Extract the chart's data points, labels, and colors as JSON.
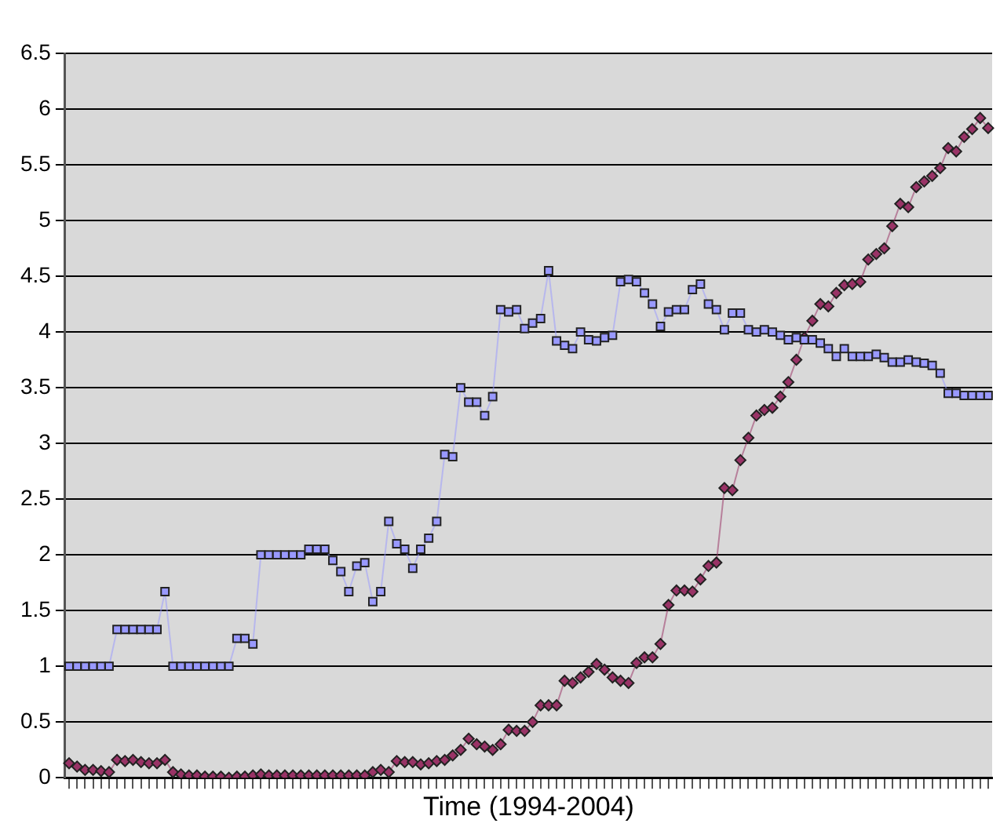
{
  "chart_data": {
    "type": "line",
    "xlabel": "Time (1994-2004)",
    "categories": [
      null,
      null,
      null,
      null,
      null,
      null,
      null,
      null,
      null,
      null,
      null,
      null,
      null,
      null,
      null,
      null,
      null,
      null,
      null,
      null,
      null,
      null,
      null,
      null,
      null,
      null,
      null,
      null,
      null,
      null,
      null,
      null,
      null,
      null,
      null,
      null,
      null,
      null,
      null,
      null,
      null,
      null,
      null,
      null,
      null,
      null,
      null,
      null,
      null,
      null,
      null,
      null,
      null,
      null,
      null,
      null,
      null,
      null,
      null,
      null,
      null,
      null,
      null,
      null,
      null,
      null,
      null,
      null,
      null,
      null,
      null,
      null,
      null,
      null,
      null,
      null,
      null,
      null,
      null,
      null,
      null,
      null,
      null,
      null,
      null,
      null,
      null,
      null,
      null,
      null,
      null,
      null,
      null,
      null,
      null,
      null,
      null,
      null,
      null,
      null,
      null,
      null,
      null,
      null,
      null,
      null,
      null,
      null,
      null,
      null,
      null,
      null,
      null,
      null,
      null,
      null
    ],
    "series": [
      {
        "color": "#9999ff",
        "marker": "square",
        "values": [
          1,
          1,
          1,
          1,
          1,
          1,
          1.33,
          1.33,
          1.33,
          1.33,
          1.33,
          1.33,
          1.67,
          1,
          1,
          1,
          1,
          1,
          1,
          1,
          1,
          1.25,
          1.25,
          1.2,
          2,
          2,
          2,
          2,
          2,
          2,
          2.05,
          2.05,
          2.05,
          1.95,
          1.85,
          1.67,
          1.9,
          1.93,
          1.58,
          1.67,
          2.3,
          2.1,
          2.05,
          1.88,
          2.05,
          2.15,
          2.3,
          2.9,
          2.88,
          3.5,
          3.37,
          3.37,
          3.25,
          3.42,
          4.2,
          4.18,
          4.2,
          4.03,
          4.08,
          4.12,
          4.55,
          3.92,
          3.88,
          3.85,
          4.0,
          3.93,
          3.92,
          3.95,
          3.97,
          4.45,
          4.47,
          4.45,
          4.35,
          4.25,
          4.05,
          4.18,
          4.2,
          4.2,
          4.38,
          4.43,
          4.25,
          4.2,
          4.02,
          4.17,
          4.17,
          4.02,
          4.0,
          4.02,
          4.0,
          3.97,
          3.93,
          3.95,
          3.93,
          3.93,
          3.9,
          3.85,
          3.78,
          3.85,
          3.78,
          3.78,
          3.78,
          3.8,
          3.77,
          3.73,
          3.73,
          3.75,
          3.73,
          3.72,
          3.7,
          3.63,
          3.45,
          3.45,
          3.43,
          3.43,
          3.43,
          3.43
        ]
      },
      {
        "color": "#993366",
        "marker": "diamond",
        "values": [
          0.13,
          0.1,
          0.07,
          0.07,
          0.06,
          0.05,
          0.16,
          0.15,
          0.16,
          0.14,
          0.13,
          0.13,
          0.16,
          0.05,
          0.03,
          0.02,
          0.02,
          0.01,
          0.01,
          0.01,
          0.0,
          0.01,
          0.01,
          0.02,
          0.03,
          0.02,
          0.02,
          0.02,
          0.02,
          0.02,
          0.02,
          0.02,
          0.02,
          0.02,
          0.02,
          0.02,
          0.02,
          0.02,
          0.05,
          0.07,
          0.05,
          0.15,
          0.14,
          0.14,
          0.12,
          0.13,
          0.15,
          0.16,
          0.2,
          0.25,
          0.35,
          0.3,
          0.28,
          0.25,
          0.3,
          0.43,
          0.42,
          0.42,
          0.5,
          0.65,
          0.65,
          0.65,
          0.87,
          0.85,
          0.9,
          0.95,
          1.02,
          0.97,
          0.9,
          0.87,
          0.85,
          1.03,
          1.08,
          1.08,
          1.2,
          1.55,
          1.68,
          1.68,
          1.67,
          1.78,
          1.9,
          1.93,
          2.6,
          2.58,
          2.85,
          3.05,
          3.25,
          3.3,
          3.32,
          3.42,
          3.55,
          3.75,
          3.95,
          4.1,
          4.25,
          4.23,
          4.35,
          4.42,
          4.43,
          4.45,
          4.65,
          4.7,
          4.75,
          4.95,
          5.15,
          5.12,
          5.3,
          5.35,
          5.4,
          5.47,
          5.65,
          5.62,
          5.75,
          5.82,
          5.92,
          5.83
        ]
      }
    ],
    "ylim": [
      0,
      6.5
    ],
    "yticks": [
      0,
      0.5,
      1,
      1.5,
      2,
      2.5,
      3,
      3.5,
      4,
      4.5,
      5,
      5.5,
      6,
      6.5
    ],
    "grid": "y",
    "tick_labels": "y"
  }
}
